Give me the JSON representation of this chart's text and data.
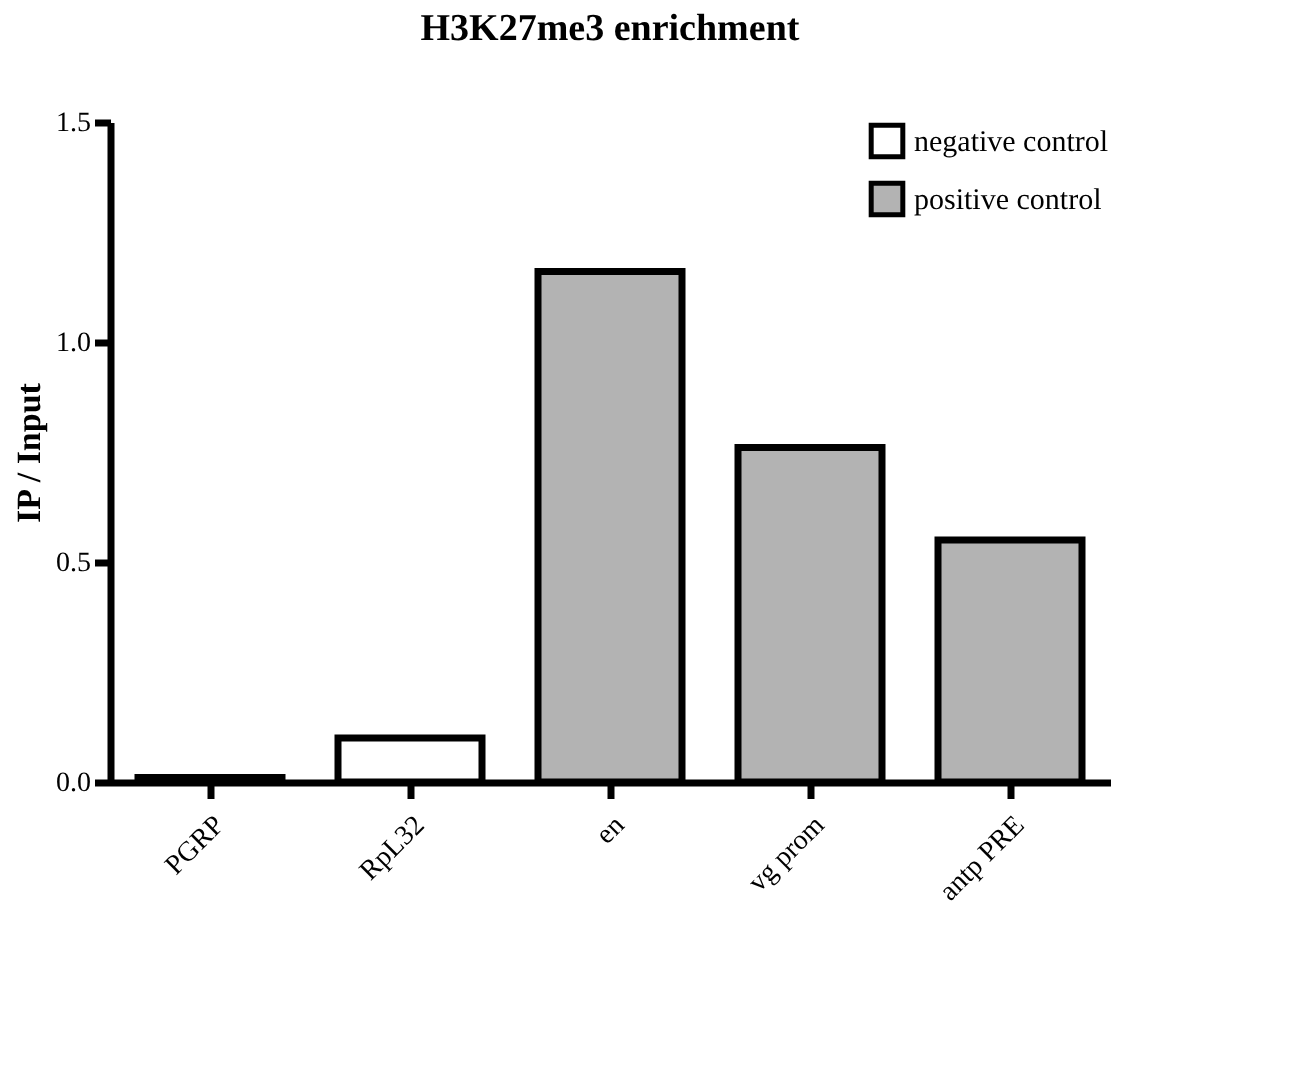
{
  "chart_data": {
    "type": "bar",
    "title": "H3K27me3 enrichment",
    "ylabel": "IP / Input",
    "categories": [
      "PGRP",
      "RpL32",
      "en",
      "vg prom",
      "antp PRE"
    ],
    "series": [
      {
        "name": "negative control",
        "color": "#ffffff",
        "values": [
          0.01,
          0.1,
          null,
          null,
          null
        ]
      },
      {
        "name": "positive control",
        "color": "#b3b3b3",
        "values": [
          null,
          null,
          1.16,
          0.76,
          0.55
        ]
      }
    ],
    "ylim": [
      0,
      1.5
    ],
    "yticks": [
      {
        "value": 0,
        "label": "0.0"
      },
      {
        "value": 0.5,
        "label": "0.5"
      },
      {
        "value": 1,
        "label": "1.0"
      },
      {
        "value": 1.5,
        "label": "1.5"
      }
    ],
    "grid": false,
    "legend": "top right"
  }
}
